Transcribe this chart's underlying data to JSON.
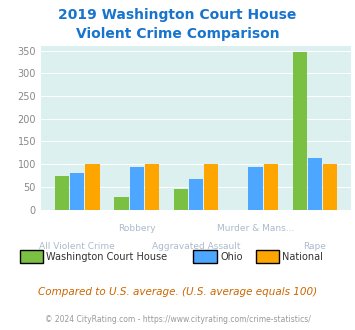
{
  "title": "2019 Washington Court House\nViolent Crime Comparison",
  "title_color": "#1874CD",
  "wch_values": [
    73,
    27,
    45,
    0,
    348
  ],
  "ohio_values": [
    80,
    93,
    67,
    93,
    113
  ],
  "national_values": [
    100,
    100,
    100,
    100,
    100
  ],
  "wch_color": "#7AC143",
  "ohio_color": "#4DA6FF",
  "national_color": "#FFA500",
  "plot_bg": "#DCF0F0",
  "ylim": [
    0,
    360
  ],
  "yticks": [
    0,
    50,
    100,
    150,
    200,
    250,
    300,
    350
  ],
  "upper_xlabels": [
    [
      1,
      "Robbery"
    ],
    [
      3,
      "Murder & Mans..."
    ]
  ],
  "lower_xlabels": [
    [
      0,
      "All Violent Crime"
    ],
    [
      2,
      "Aggravated Assault"
    ],
    [
      4,
      "Rape"
    ]
  ],
  "xlabel_color": "#AABBCC",
  "legend_labels": [
    "Washington Court House",
    "Ohio",
    "National"
  ],
  "footnote1": "Compared to U.S. average. (U.S. average equals 100)",
  "footnote2": "© 2024 CityRating.com - https://www.cityrating.com/crime-statistics/",
  "footnote1_color": "#CC6600",
  "footnote2_color": "#999999",
  "footnote2_link_color": "#4DA6FF"
}
